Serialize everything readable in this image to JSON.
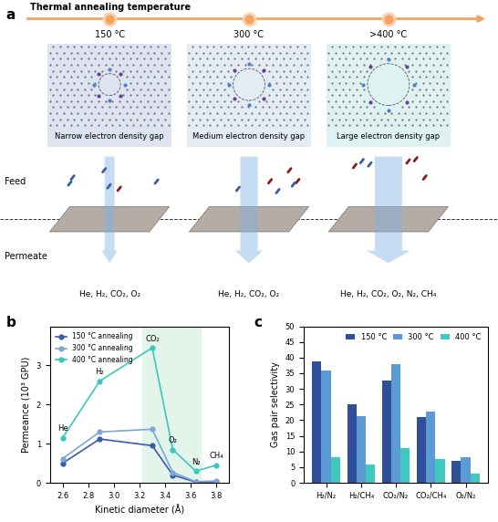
{
  "diagram": {
    "panel_label": "a",
    "timeline_title": "Thermal annealing temperature",
    "feed_label": "Feed",
    "permeate_label": "Permeate",
    "panels": [
      {
        "temperature": "150 °C",
        "caption": "Narrow electron density gap",
        "permeate": "He, H₂, CO₂, O₂"
      },
      {
        "temperature": "300 °C",
        "caption": "Medium electron density gap",
        "permeate": "He, H₂, CO₂, O₂"
      },
      {
        "temperature": ">400 °C",
        "caption": "Large electron density gap",
        "permeate": "He, H₂, CO₂, O₂, N₂, CH₄"
      }
    ]
  },
  "chart_data": [
    {
      "panel_label": "b",
      "type": "line",
      "x": [
        2.6,
        2.89,
        3.3,
        3.46,
        3.64,
        3.8
      ],
      "point_labels": [
        "He",
        "H₂",
        "CO₂",
        "O₂",
        "N₂",
        "CH₄"
      ],
      "xlabel": "Kinetic diameter (Å)",
      "ylabel": "Permeance (10³ GPU)",
      "xlim": [
        2.5,
        3.9
      ],
      "xticks": [
        2.6,
        2.8,
        3.0,
        3.2,
        3.4,
        3.6,
        3.8
      ],
      "ylim": [
        0,
        4
      ],
      "yticks": [
        0,
        1,
        2,
        3
      ],
      "shaded_region": [
        3.22,
        3.68
      ],
      "legend": "upper left",
      "marker": "o",
      "series": [
        {
          "name": "150 °C annealing",
          "color": "#3a5ba8",
          "values": [
            0.5,
            1.12,
            0.95,
            0.2,
            0.02,
            0.03
          ]
        },
        {
          "name": "300 °C annealing",
          "color": "#7ba7d9",
          "values": [
            0.62,
            1.3,
            1.37,
            0.27,
            0.03,
            0.05
          ]
        },
        {
          "name": "400 °C annealing",
          "color": "#3cc6c0",
          "values": [
            1.15,
            2.6,
            3.45,
            0.85,
            0.3,
            0.45
          ]
        }
      ]
    },
    {
      "panel_label": "c",
      "type": "bar",
      "categories": [
        "H₂/N₂",
        "H₂/CH₄",
        "CO₂/N₂",
        "CO₂/CH₄",
        "O₂/N₂"
      ],
      "ylabel": "Gas pair selectivity",
      "ylim": [
        0,
        50
      ],
      "yticks": [
        0,
        5,
        10,
        15,
        20,
        25,
        30,
        35,
        40,
        45,
        50
      ],
      "legend": "upper right",
      "series": [
        {
          "name": "150 °C",
          "color": "#2f4f9a",
          "values": [
            38.8,
            25,
            32.8,
            21,
            7
          ]
        },
        {
          "name": "300 °C",
          "color": "#5b9bd5",
          "values": [
            35.8,
            21.3,
            38,
            22.8,
            8.2
          ]
        },
        {
          "name": "400 °C",
          "color": "#3ec8c0",
          "values": [
            8.2,
            5.8,
            11,
            7.7,
            2.8
          ]
        }
      ]
    }
  ]
}
